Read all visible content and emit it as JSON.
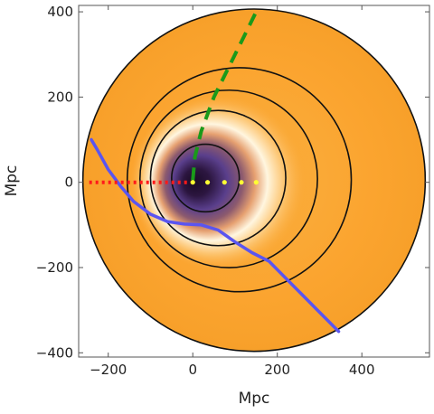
{
  "chart_data": {
    "type": "heatmap",
    "xlabel": "Mpc",
    "ylabel": "Mpc",
    "xlim": [
      -270,
      560
    ],
    "ylim": [
      -410,
      415
    ],
    "x_ticks": [
      -200,
      0,
      200,
      400
    ],
    "y_ticks": [
      -400,
      -200,
      0,
      200,
      400
    ],
    "x_tick_labels": [
      "−200",
      "0",
      "200",
      "400"
    ],
    "y_tick_labels": [
      "−400",
      "−200",
      "0",
      "200",
      "400"
    ],
    "grid": false,
    "field": {
      "outer_circle": {
        "cx": 145,
        "cy": 5,
        "r": 405
      },
      "dark_core": {
        "cx": 0,
        "cy": 0
      },
      "colors": {
        "core": "#1a0a25",
        "purple": "#5a3f8c",
        "highlight": "#fff6e0",
        "background": "#fba42f"
      }
    },
    "contours": [
      {
        "cx": 30,
        "cy": 10,
        "r": 80
      },
      {
        "cx": 60,
        "cy": 10,
        "r": 160
      },
      {
        "cx": 85,
        "cy": 8,
        "r": 210
      },
      {
        "cx": 110,
        "cy": 6,
        "r": 265
      },
      {
        "cx": 145,
        "cy": 5,
        "r": 405
      }
    ],
    "series": [
      {
        "style": "dashed",
        "color": "#1a9a1a",
        "x": [
          0,
          5,
          20,
          50,
          90,
          125,
          150
        ],
        "y": [
          5,
          60,
          120,
          200,
          280,
          350,
          400
        ]
      },
      {
        "style": "solid",
        "color": "#5a55f0",
        "x": [
          -240,
          -225,
          -200,
          -170,
          -140,
          -100,
          -60,
          -20,
          20,
          60,
          100,
          140,
          180,
          220,
          260,
          295,
          320,
          345
        ],
        "y": [
          100,
          75,
          30,
          -10,
          -45,
          -75,
          -92,
          -98,
          -100,
          -112,
          -140,
          -165,
          -185,
          -225,
          -265,
          -300,
          -325,
          -350
        ]
      },
      {
        "style": "dotted",
        "color": "#ff1a1a",
        "x": [
          -245,
          -220,
          -195,
          -170,
          -145,
          -120,
          -95,
          -70,
          -45,
          -20,
          -5
        ],
        "y": [
          0,
          0,
          0,
          0,
          0,
          0,
          0,
          0,
          0,
          0,
          0
        ]
      },
      {
        "style": "dots",
        "color": "#ffff33",
        "x": [
          0,
          35,
          75,
          115,
          150
        ],
        "y": [
          0,
          0,
          0,
          0,
          0
        ]
      }
    ]
  }
}
